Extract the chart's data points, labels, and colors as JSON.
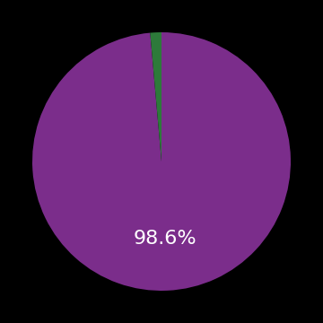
{
  "values": [
    98.6,
    1.4
  ],
  "colors": [
    "#7b2d8b",
    "#2d7a3a"
  ],
  "label_text": "98.6%",
  "label_color": "#ffffff",
  "label_fontsize": 16,
  "background_color": "#000000",
  "startangle": 90,
  "figsize": [
    3.6,
    3.6
  ],
  "dpi": 100
}
